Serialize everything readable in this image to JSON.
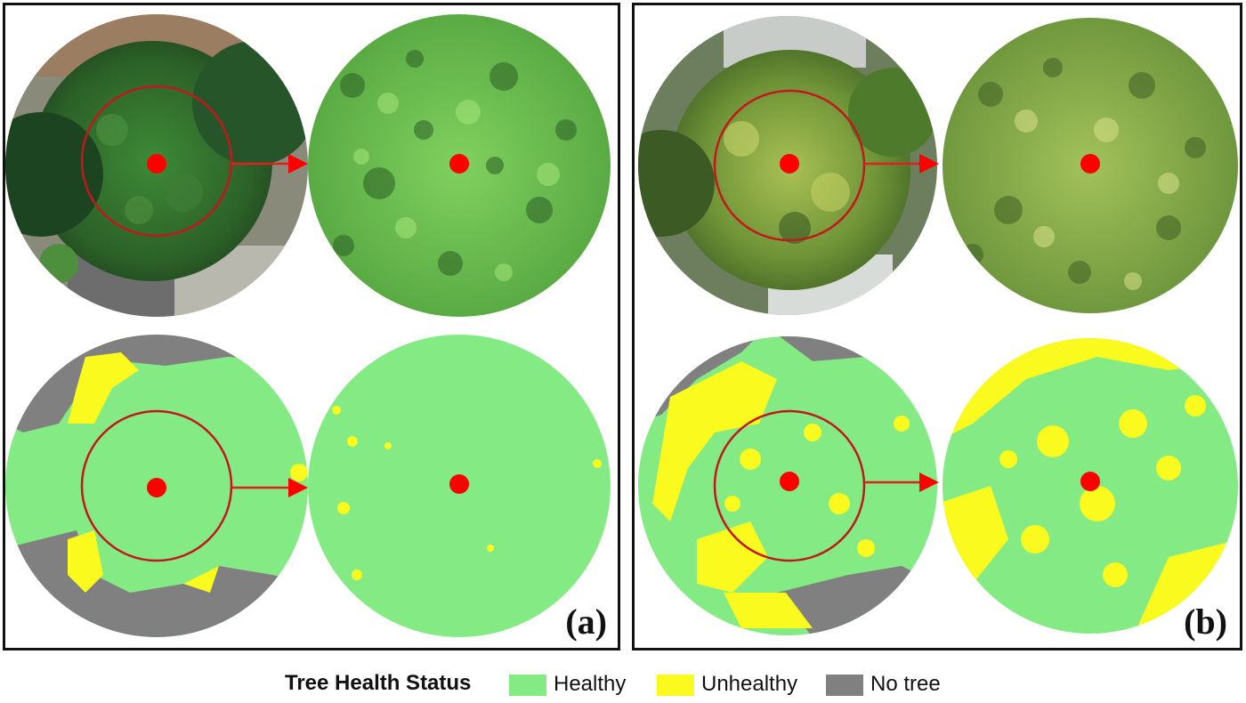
{
  "panels": [
    {
      "id": "a",
      "label": "(a)"
    },
    {
      "id": "b",
      "label": "(b)"
    }
  ],
  "legend": {
    "title": "Tree Health Status",
    "items": [
      {
        "label": "Healthy",
        "color": "#84ea84"
      },
      {
        "label": "Unhealthy",
        "color": "#fafa1e"
      },
      {
        "label": "No tree",
        "color": "#808080"
      }
    ]
  },
  "colors": {
    "healthy": "#84ea84",
    "unhealthy": "#fafa1e",
    "no_tree": "#808080",
    "marker": "#ff0000",
    "circle": "#c1181e",
    "canopy_dark": "#2f6a2a",
    "canopy_light": "#7bc95a"
  }
}
